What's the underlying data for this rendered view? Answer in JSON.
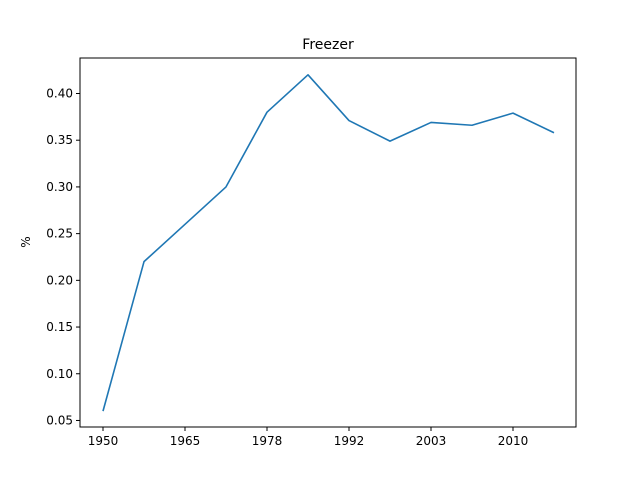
{
  "chart_data": {
    "type": "line",
    "title": "Freezer",
    "xlabel": "",
    "ylabel": "%",
    "x_ticks": [
      "1950",
      "1965",
      "1978",
      "1992",
      "2003",
      "2010"
    ],
    "y_ticks": [
      "0.05",
      "0.10",
      "0.15",
      "0.20",
      "0.25",
      "0.30",
      "0.35",
      "0.40"
    ],
    "ylim": [
      0.043,
      0.438
    ],
    "grid": false,
    "series": [
      {
        "color": "#1f77b4",
        "x": [
          "1950",
          "",
          "1965",
          "",
          "1978",
          "",
          "1992",
          "",
          "2003",
          "",
          "2010",
          ""
        ],
        "values": [
          0.06,
          0.22,
          0.26,
          0.3,
          0.38,
          0.42,
          0.371,
          0.349,
          0.369,
          0.366,
          0.379,
          0.358
        ]
      }
    ]
  }
}
